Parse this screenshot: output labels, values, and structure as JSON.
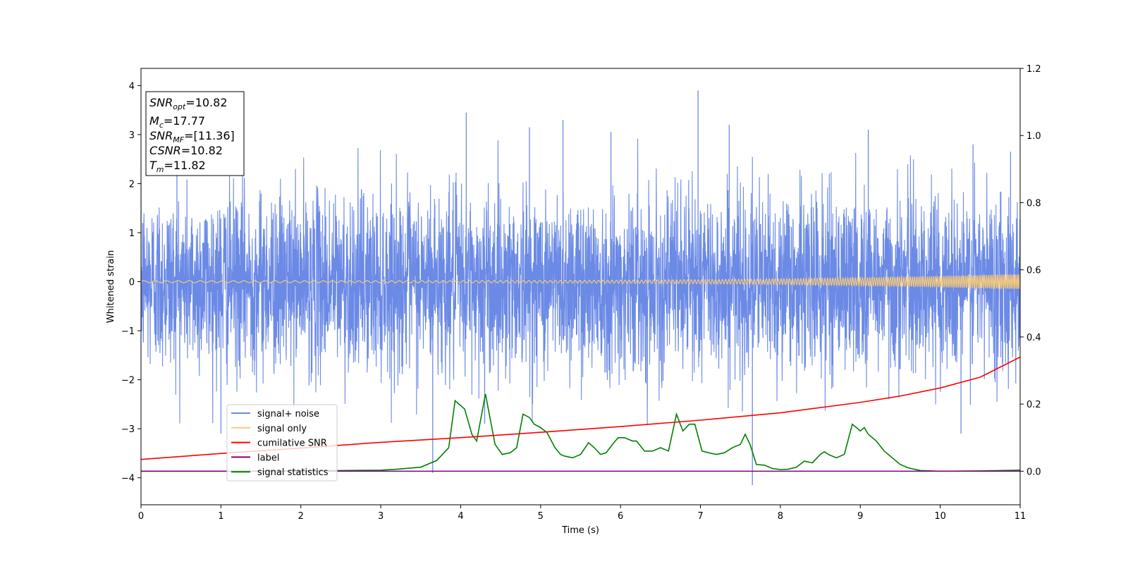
{
  "chart_data": {
    "type": "line",
    "xlabel": "Time (s)",
    "ylabel": "Whitened strain",
    "xlim": [
      0,
      11
    ],
    "ylim": [
      -4.55,
      4.35
    ],
    "y2lim": [
      -0.1,
      1.2
    ],
    "x_ticks": [
      "0",
      "1",
      "2",
      "3",
      "4",
      "5",
      "6",
      "7",
      "8",
      "9",
      "10",
      "11"
    ],
    "y_ticks": [
      "−4",
      "−3",
      "−2",
      "−1",
      "0",
      "1",
      "2",
      "3",
      "4"
    ],
    "y2_ticks": [
      "0.0",
      "0.2",
      "0.4",
      "0.6",
      "0.8",
      "1.0",
      "1.2"
    ],
    "grid": false,
    "legend_position": "lower-left",
    "series": [
      {
        "name": "signal+ noise",
        "color": "#6b8ae6",
        "axis": "left",
        "noise_std": 0.9,
        "spikes": [
          [
            0.45,
            2.6
          ],
          [
            1.0,
            -3.1
          ],
          [
            3.65,
            -3.9
          ],
          [
            4.07,
            3.45
          ],
          [
            4.3,
            -2.9
          ],
          [
            4.86,
            3.15
          ],
          [
            5.28,
            3.3
          ],
          [
            5.88,
            3.05
          ],
          [
            6.97,
            3.9
          ],
          [
            7.65,
            -4.15
          ],
          [
            7.36,
            3.2
          ],
          [
            9.1,
            3.1
          ],
          [
            10.26,
            -3.1
          ],
          [
            10.41,
            2.8
          ],
          [
            10.88,
            2.65
          ]
        ]
      },
      {
        "name": "signal only",
        "color": "#f5c87a",
        "axis": "left",
        "chirp": {
          "t_merge": 11.82,
          "amp_start": 0.02,
          "amp_end": 0.16,
          "freq_start": 7.0,
          "freq_end": 20.0
        }
      },
      {
        "name": "cumilative SNR",
        "color": "#ff0000",
        "axis": "right",
        "x": [
          0,
          1,
          2,
          3,
          4,
          5,
          6,
          7,
          8,
          9,
          9.5,
          10,
          10.5,
          11
        ],
        "values": [
          0.035,
          0.053,
          0.069,
          0.086,
          0.1,
          0.116,
          0.133,
          0.152,
          0.174,
          0.205,
          0.224,
          0.248,
          0.28,
          0.34
        ]
      },
      {
        "name": "label",
        "color": "#800080",
        "axis": "right",
        "x": [
          0,
          11
        ],
        "values": [
          0.0,
          0.0
        ]
      },
      {
        "name": "signal statistics",
        "color": "#008000",
        "axis": "right",
        "x": [
          0,
          1,
          2,
          2.5,
          3.0,
          3.2,
          3.5,
          3.7,
          3.85,
          3.93,
          4.05,
          4.14,
          4.2,
          4.31,
          4.43,
          4.52,
          4.62,
          4.7,
          4.78,
          4.86,
          4.92,
          5.0,
          5.08,
          5.18,
          5.25,
          5.3,
          5.4,
          5.5,
          5.6,
          5.68,
          5.75,
          5.82,
          5.9,
          5.97,
          6.05,
          6.15,
          6.2,
          6.3,
          6.4,
          6.5,
          6.6,
          6.7,
          6.78,
          6.86,
          6.93,
          7.02,
          7.1,
          7.2,
          7.3,
          7.4,
          7.5,
          7.56,
          7.62,
          7.7,
          7.8,
          7.9,
          8.0,
          8.1,
          8.2,
          8.3,
          8.4,
          8.5,
          8.55,
          8.6,
          8.7,
          8.8,
          8.9,
          9.0,
          9.05,
          9.1,
          9.2,
          9.3,
          9.4,
          9.5,
          9.6,
          9.75,
          10,
          10.5,
          11
        ],
        "values": [
          0.0,
          0.0,
          0.001,
          0.002,
          0.003,
          0.006,
          0.012,
          0.032,
          0.07,
          0.21,
          0.185,
          0.11,
          0.09,
          0.23,
          0.08,
          0.05,
          0.055,
          0.07,
          0.17,
          0.16,
          0.14,
          0.13,
          0.115,
          0.07,
          0.05,
          0.045,
          0.04,
          0.05,
          0.085,
          0.068,
          0.05,
          0.055,
          0.08,
          0.1,
          0.1,
          0.09,
          0.09,
          0.06,
          0.06,
          0.07,
          0.06,
          0.17,
          0.12,
          0.14,
          0.14,
          0.06,
          0.055,
          0.05,
          0.055,
          0.07,
          0.08,
          0.11,
          0.08,
          0.02,
          0.018,
          0.008,
          0.005,
          0.006,
          0.012,
          0.03,
          0.025,
          0.05,
          0.058,
          0.05,
          0.04,
          0.05,
          0.14,
          0.12,
          0.13,
          0.11,
          0.09,
          0.06,
          0.04,
          0.02,
          0.01,
          0.002,
          0.0,
          0.001,
          0.003
        ]
      }
    ]
  },
  "legend": [
    {
      "label": "signal+ noise",
      "color": "#6b8ae6"
    },
    {
      "label": "signal only",
      "color": "#f5c87a"
    },
    {
      "label": "cumilative SNR",
      "color": "#ff0000"
    },
    {
      "label": "label",
      "color": "#800080"
    },
    {
      "label": "signal statistics",
      "color": "#008000"
    }
  ],
  "stats_box": {
    "snr_opt_value": "=10.82",
    "mc_value": "=17.77",
    "snr_mf_value": "=[11.36]",
    "csnr_value": "=10.82",
    "tm_value": "=11.82"
  }
}
